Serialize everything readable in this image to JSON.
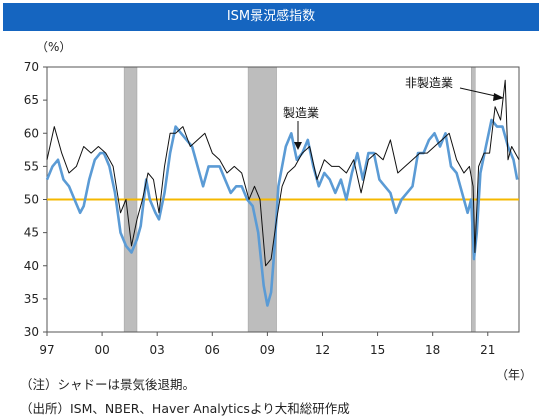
{
  "header": {
    "title": "ISM景況感指数"
  },
  "chart_data": {
    "type": "line",
    "title": "ISM景況感指数",
    "ylabel_unit": "（%）",
    "xlabel_unit": "（年）",
    "ylim": [
      30,
      70
    ],
    "yticks": [
      30,
      35,
      40,
      45,
      50,
      55,
      60,
      65,
      70
    ],
    "xlim": [
      1997.0,
      2022.7
    ],
    "xticks": [
      {
        "label": "97",
        "value": 1997
      },
      {
        "label": "00",
        "value": 2000
      },
      {
        "label": "03",
        "value": 2003
      },
      {
        "label": "06",
        "value": 2006
      },
      {
        "label": "09",
        "value": 2009
      },
      {
        "label": "12",
        "value": 2012
      },
      {
        "label": "15",
        "value": 2015
      },
      {
        "label": "18",
        "value": 2018
      },
      {
        "label": "21",
        "value": 2021
      }
    ],
    "reference_line": {
      "value": 50,
      "color": "#f5b800"
    },
    "recessions": [
      [
        2001.2,
        2001.9
      ],
      [
        2007.95,
        2009.5
      ],
      [
        2020.1,
        2020.3
      ]
    ],
    "series": [
      {
        "name": "製造業",
        "color": "#5b9bd5",
        "x": [
          1997.0,
          1997.3,
          1997.6,
          1997.9,
          1998.2,
          1998.5,
          1998.8,
          1999.0,
          1999.3,
          1999.6,
          1999.9,
          2000.1,
          2000.4,
          2000.7,
          2001.0,
          2001.3,
          2001.6,
          2001.9,
          2002.1,
          2002.4,
          2002.6,
          2002.9,
          2003.1,
          2003.4,
          2003.7,
          2004.0,
          2004.3,
          2004.6,
          2004.9,
          2005.2,
          2005.5,
          2005.8,
          2006.1,
          2006.4,
          2006.7,
          2007.0,
          2007.3,
          2007.6,
          2007.9,
          2008.2,
          2008.5,
          2008.8,
          2009.0,
          2009.2,
          2009.4,
          2009.6,
          2009.8,
          2010.0,
          2010.3,
          2010.6,
          2010.9,
          2011.2,
          2011.5,
          2011.8,
          2012.1,
          2012.4,
          2012.7,
          2013.0,
          2013.3,
          2013.6,
          2013.9,
          2014.2,
          2014.5,
          2014.8,
          2015.1,
          2015.4,
          2015.7,
          2016.0,
          2016.3,
          2016.6,
          2016.9,
          2017.2,
          2017.5,
          2017.8,
          2018.1,
          2018.4,
          2018.7,
          2019.0,
          2019.3,
          2019.6,
          2019.9,
          2020.1,
          2020.25,
          2020.4,
          2020.6,
          2020.9,
          2021.2,
          2021.5,
          2021.8,
          2022.1,
          2022.4,
          2022.6
        ],
        "values": [
          53,
          55,
          56,
          53,
          52,
          50,
          48,
          49,
          53,
          56,
          57,
          57,
          55,
          51,
          45,
          43,
          42,
          44,
          46,
          53,
          50,
          48,
          47,
          51,
          57,
          61,
          60,
          59,
          58,
          55,
          52,
          55,
          55,
          55,
          53,
          51,
          52,
          52,
          50,
          49,
          45,
          37,
          34,
          36,
          43,
          52,
          55,
          58,
          60,
          56,
          57,
          59,
          55,
          52,
          54,
          53,
          51,
          53,
          50,
          54,
          57,
          53,
          57,
          57,
          53,
          52,
          51,
          48,
          50,
          51,
          52,
          57,
          57,
          59,
          60,
          58,
          60,
          55,
          54,
          51,
          48,
          50,
          41,
          45,
          54,
          58,
          62,
          61,
          61,
          58,
          56,
          53
        ]
      },
      {
        "name": "非製造業",
        "color": "#111111",
        "x": [
          1997.0,
          1997.4,
          1997.8,
          1998.2,
          1998.6,
          1999.0,
          1999.4,
          1999.8,
          2000.2,
          2000.6,
          2001.0,
          2001.3,
          2001.6,
          2001.9,
          2002.2,
          2002.5,
          2002.8,
          2003.1,
          2003.4,
          2003.7,
          2004.0,
          2004.4,
          2004.8,
          2005.2,
          2005.6,
          2006.0,
          2006.4,
          2006.8,
          2007.2,
          2007.6,
          2008.0,
          2008.3,
          2008.6,
          2008.9,
          2009.2,
          2009.5,
          2009.8,
          2010.1,
          2010.5,
          2010.9,
          2011.3,
          2011.7,
          2012.1,
          2012.5,
          2012.9,
          2013.3,
          2013.7,
          2014.1,
          2014.5,
          2014.9,
          2015.3,
          2015.7,
          2016.1,
          2016.5,
          2016.9,
          2017.3,
          2017.7,
          2018.1,
          2018.5,
          2018.9,
          2019.3,
          2019.7,
          2020.0,
          2020.2,
          2020.3,
          2020.5,
          2020.8,
          2021.1,
          2021.4,
          2021.7,
          2021.95,
          2022.1,
          2022.3,
          2022.5,
          2022.7
        ],
        "values": [
          56,
          61,
          57,
          54,
          55,
          58,
          57,
          58,
          57,
          55,
          48,
          50,
          43,
          47,
          50,
          54,
          53,
          48,
          55,
          60,
          60,
          61,
          58,
          59,
          60,
          57,
          56,
          54,
          55,
          54,
          50,
          52,
          50,
          40,
          41,
          47,
          52,
          54,
          55,
          57,
          58,
          53,
          56,
          55,
          55,
          54,
          56,
          51,
          56,
          57,
          56,
          59,
          54,
          55,
          56,
          57,
          57,
          58,
          59,
          60,
          56,
          54,
          55,
          52,
          42,
          55,
          57,
          57,
          64,
          62,
          68,
          56,
          58,
          57,
          56
        ]
      }
    ],
    "annotations": [
      {
        "text": "製造業",
        "series": "製造業"
      },
      {
        "text": "非製造業",
        "series": "非製造業"
      }
    ]
  },
  "footnotes": {
    "note": "（注）シャドーは景気後退期。",
    "source": "（出所）ISM、NBER、Haver Analyticsより大和総研作成"
  }
}
